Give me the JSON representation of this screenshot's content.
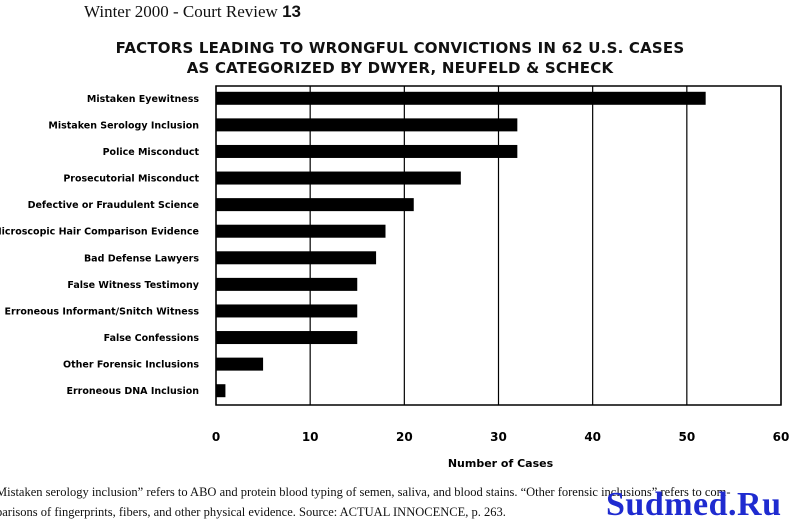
{
  "header": {
    "text": "Winter 2000 - Court Review",
    "page": "13"
  },
  "chart_data": {
    "type": "bar",
    "orientation": "horizontal",
    "title_line1": "FACTORS LEADING TO WRONGFUL CONVICTIONS IN 62 U.S. CASES",
    "title_line2": "AS CATEGORIZED BY DWYER, NEUFELD & SCHECK",
    "categories": [
      "Mistaken Eyewitness",
      "Mistaken Serology Inclusion",
      "Police Misconduct",
      "Prosecutorial Misconduct",
      "Defective or Fraudulent Science",
      "Microscopic Hair Comparison Evidence",
      "Bad Defense Lawyers",
      "False Witness Testimony",
      "Erroneous Informant/Snitch Witness",
      "False Confessions",
      "Other Forensic Inclusions",
      "Erroneous DNA Inclusion"
    ],
    "values": [
      52,
      32,
      32,
      26,
      21,
      18,
      17,
      15,
      15,
      15,
      5,
      1
    ],
    "xlim": [
      0,
      60
    ],
    "xticks": [
      "0",
      "10",
      "20",
      "30",
      "40",
      "50",
      "60"
    ],
    "xlabel": "Number of Cases",
    "ylabel": "",
    "grid": "vertical",
    "bar_color": "#000000"
  },
  "footnote": {
    "line1": "Mistaken serology inclusion” refers to ABO and protein blood typing of semen, saliva, and blood stains.  “Other forensic inclusions” refers to com-",
    "line2": "parisons of fingerprints, fibers, and other physical evidence.  Source:  ACTUAL INNOCENCE, p. 263."
  },
  "watermark": {
    "text": "Sudmed.Ru",
    "color": "#1f2bd0"
  }
}
